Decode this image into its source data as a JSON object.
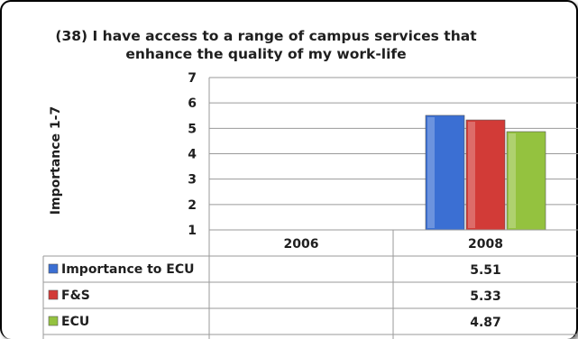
{
  "chart_data": {
    "type": "bar",
    "title": "(38) I have access to a range of campus services that enhance the quality of my work-life",
    "ylabel": "Importance 1-7",
    "xlabel": "",
    "ylim": [
      1,
      7
    ],
    "yticks": [
      "1",
      "2",
      "3",
      "4",
      "5",
      "6",
      "7"
    ],
    "grid": true,
    "legend": "data-table",
    "categories": [
      "2006",
      "2008"
    ],
    "series": [
      {
        "name": "Importance to ECU",
        "color": "#3b6fd3",
        "values": [
          null,
          5.51
        ],
        "labels": [
          "",
          "5.51"
        ]
      },
      {
        "name": "F&S",
        "color": "#d23b37",
        "values": [
          null,
          5.33
        ],
        "labels": [
          "",
          "5.33"
        ]
      },
      {
        "name": "ECU",
        "color": "#94c23f",
        "values": [
          null,
          4.87
        ],
        "labels": [
          "",
          "4.87"
        ]
      }
    ]
  }
}
